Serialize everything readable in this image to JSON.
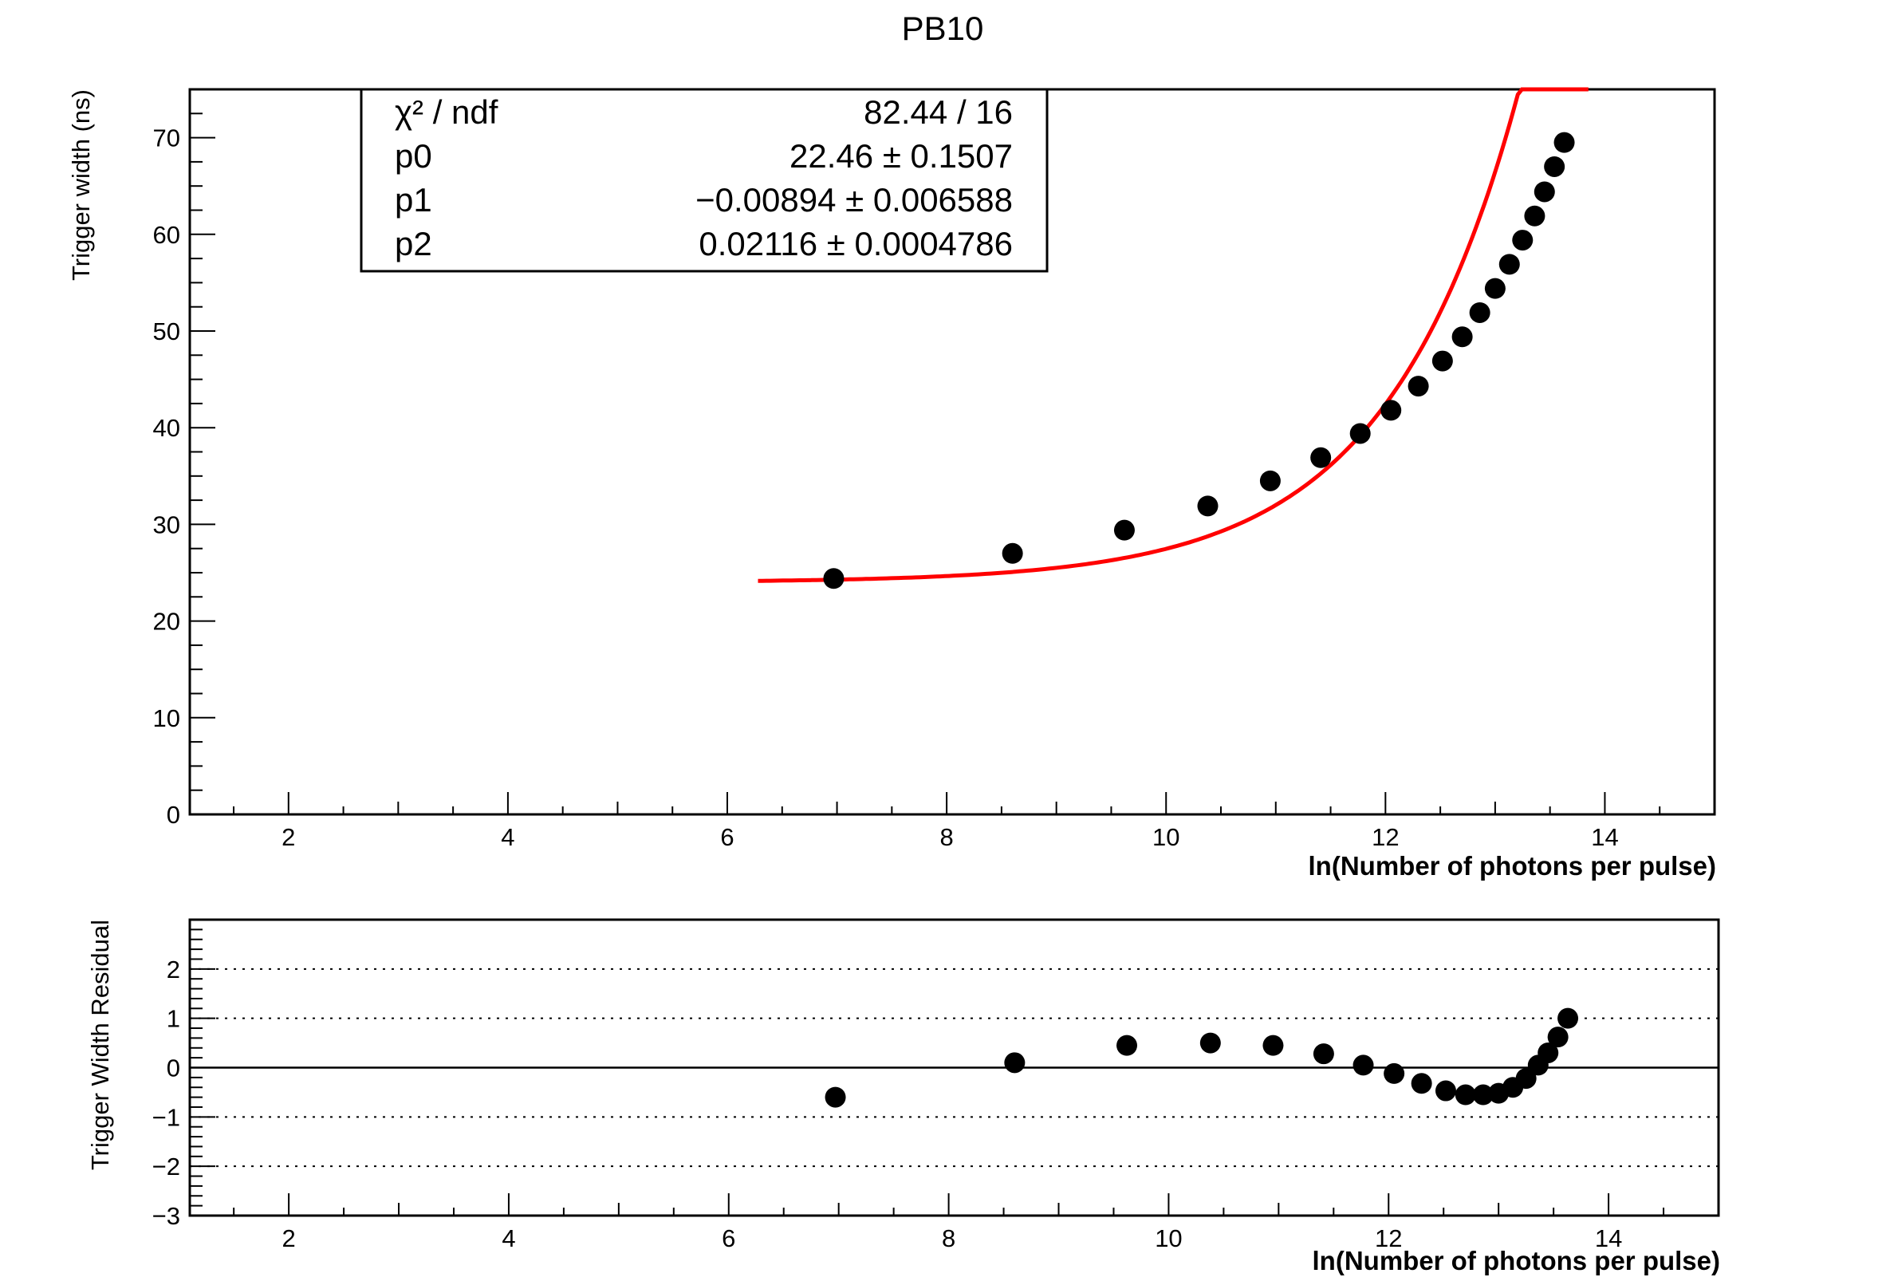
{
  "chart_data": [
    {
      "type": "scatter",
      "title": "PB10",
      "xlabel": "ln(Number of photons per pulse)",
      "ylabel": "Trigger width (ns)",
      "xlim": [
        1.1,
        15.0
      ],
      "ylim": [
        0,
        75
      ],
      "x_ticks": [
        "2",
        "4",
        "6",
        "8",
        "10",
        "12",
        "14"
      ],
      "y_ticks": [
        "0",
        "10",
        "20",
        "30",
        "40",
        "50",
        "60",
        "70"
      ],
      "series": [
        {
          "values_x": [
            6.97,
            8.6,
            9.62,
            10.38,
            10.95,
            11.41,
            11.77,
            12.05,
            12.3,
            12.52,
            12.7,
            12.86,
            13.0,
            13.13,
            13.25,
            13.36,
            13.45,
            13.54,
            13.63
          ],
          "values_y": [
            24.4,
            27.0,
            29.4,
            31.9,
            34.5,
            36.9,
            39.4,
            41.8,
            44.3,
            46.9,
            49.4,
            51.9,
            54.4,
            56.9,
            59.4,
            61.9,
            64.4,
            67.0,
            69.5
          ],
          "color": "#000000"
        }
      ],
      "fit": {
        "color": "#ff0000",
        "x_range": [
          6.28,
          13.85
        ],
        "stats": {
          "rows": [
            {
              "label": "χ² / ndf",
              "value": "82.44 / 16"
            },
            {
              "label": "p0",
              "value": "22.46 ± 0.1507"
            },
            {
              "label": "p1",
              "value": "−0.00894 ± 0.006588"
            },
            {
              "label": "p2",
              "value": "0.02116 ± 0.0004786"
            }
          ]
        }
      }
    },
    {
      "type": "scatter",
      "title": "",
      "xlabel": "ln(Number of photons per pulse)",
      "ylabel": "Trigger Width Residual",
      "xlim": [
        1.1,
        15.0
      ],
      "ylim": [
        -3,
        3
      ],
      "x_ticks": [
        "2",
        "4",
        "6",
        "8",
        "10",
        "12",
        "14"
      ],
      "y_ticks": [
        "−3",
        "−2",
        "−1",
        "0",
        "1",
        "2"
      ],
      "grid": "dotted at y = -2, -1, 1, 2; solid at y = 0",
      "series": [
        {
          "values_x": [
            6.97,
            8.6,
            9.62,
            10.38,
            10.95,
            11.41,
            11.77,
            12.05,
            12.3,
            12.52,
            12.7,
            12.86,
            13.0,
            13.13,
            13.25,
            13.36,
            13.45,
            13.54,
            13.63
          ],
          "values_y": [
            -0.6,
            0.1,
            0.45,
            0.5,
            0.45,
            0.28,
            0.05,
            -0.12,
            -0.32,
            -0.47,
            -0.55,
            -0.55,
            -0.52,
            -0.4,
            -0.22,
            0.05,
            0.3,
            0.62,
            1.0
          ],
          "color": "#000000"
        }
      ]
    }
  ]
}
